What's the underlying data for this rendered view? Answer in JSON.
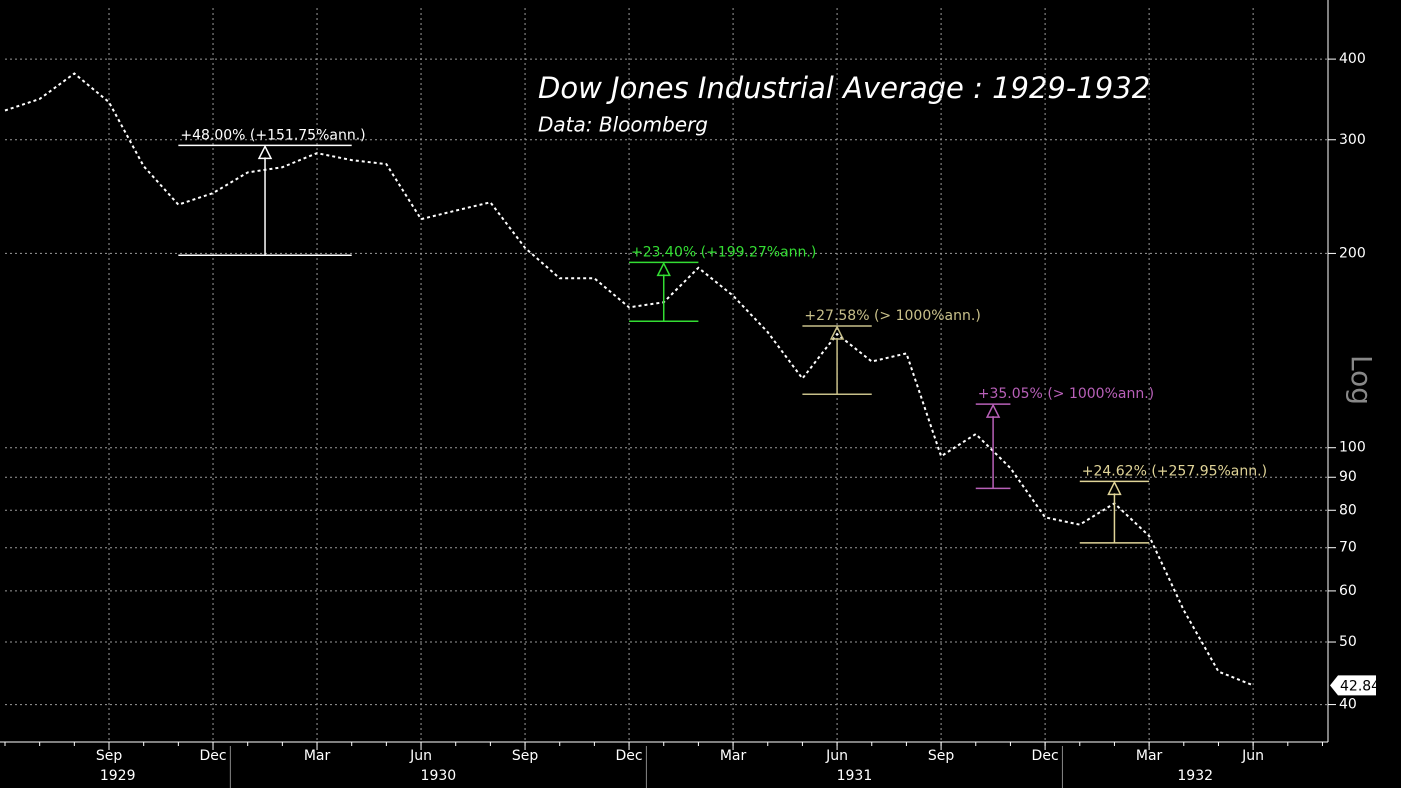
{
  "chart_data": {
    "type": "line",
    "title": "Dow Jones Industrial Average : 1929-1932",
    "subtitle": "Data: Bloomberg",
    "y_axis_label": "Log",
    "log_scale": true,
    "grid": true,
    "x": [
      "1929-06",
      "1929-07",
      "1929-08",
      "1929-09",
      "1929-10",
      "1929-11",
      "1929-12",
      "1930-01",
      "1930-02",
      "1930-03",
      "1930-04",
      "1930-05",
      "1930-06",
      "1930-07",
      "1930-08",
      "1930-09",
      "1930-10",
      "1930-11",
      "1930-12",
      "1931-01",
      "1931-02",
      "1931-03",
      "1931-04",
      "1931-05",
      "1931-06",
      "1931-07",
      "1931-08",
      "1931-09",
      "1931-10",
      "1931-11",
      "1931-12",
      "1932-01",
      "1932-02",
      "1932-03",
      "1932-04",
      "1932-05",
      "1932-06"
    ],
    "series": [
      {
        "name": "Dow Jones Industrial Average",
        "color": "#ffffff",
        "values": [
          333,
          347,
          380,
          343,
          273,
          238,
          248,
          267,
          272,
          286,
          279,
          275,
          226,
          233,
          240,
          204,
          183,
          183,
          165,
          168,
          190,
          172,
          151,
          128,
          150,
          136,
          140,
          97,
          105,
          93,
          78,
          76,
          82,
          73,
          56,
          45,
          42.84
        ]
      }
    ],
    "ylim": [
      35,
      480
    ],
    "yticks": [
      40,
      50,
      60,
      70,
      80,
      90,
      100,
      200,
      300,
      400
    ],
    "xticks": [
      {
        "value": "1929-09",
        "label": "Sep"
      },
      {
        "value": "1929-12",
        "label": "Dec"
      },
      {
        "value": "1930-03",
        "label": "Mar"
      },
      {
        "value": "1930-06",
        "label": "Jun"
      },
      {
        "value": "1930-09",
        "label": "Sep"
      },
      {
        "value": "1930-12",
        "label": "Dec"
      },
      {
        "value": "1931-03",
        "label": "Mar"
      },
      {
        "value": "1931-06",
        "label": "Jun"
      },
      {
        "value": "1931-09",
        "label": "Sep"
      },
      {
        "value": "1931-12",
        "label": "Dec"
      },
      {
        "value": "1932-03",
        "label": "Mar"
      },
      {
        "value": "1932-06",
        "label": "Jun"
      }
    ],
    "years": [
      1929,
      1930,
      1931,
      1932
    ],
    "annotations": [
      {
        "text": "+48.00% (+151.75%ann.)",
        "color": "#ffffff",
        "from": "1929-11",
        "to": "1930-04",
        "low": 198.7,
        "high": 294
      },
      {
        "text": "+23.40% (+199.27%ann.)",
        "color": "#33dd33",
        "from": "1930-12",
        "to": "1931-02",
        "low": 157,
        "high": 193.7
      },
      {
        "text": "+27.58% (> 1000%ann.)",
        "color": "#c8c08a",
        "from": "1931-05",
        "to": "1931-07",
        "low": 121,
        "high": 154.4
      },
      {
        "text": "+35.05% (> 1000%ann.)",
        "color": "#b860b8",
        "from": "1931-10",
        "to": "1931-11",
        "low": 86.5,
        "high": 116.8
      },
      {
        "text": "+24.62% (+257.95%ann.)",
        "color": "#e0d498",
        "from": "1932-01",
        "to": "1932-03",
        "low": 71.2,
        "high": 88.7
      }
    ]
  }
}
